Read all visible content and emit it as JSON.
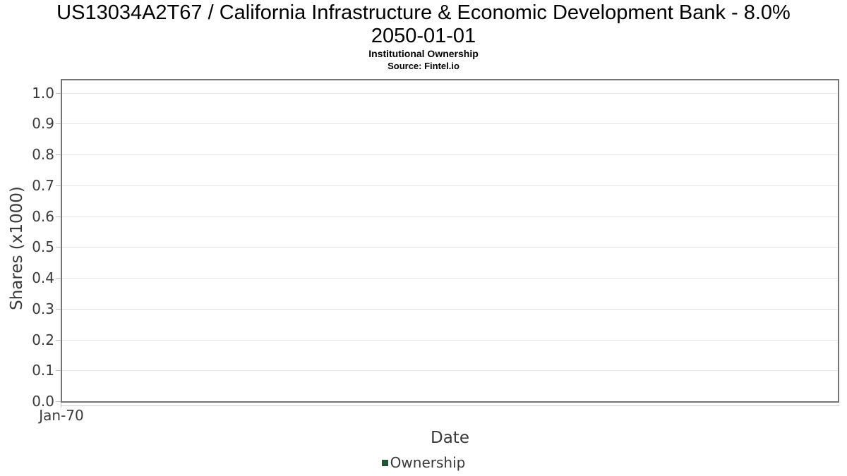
{
  "page": {
    "title_line1": "US13034A2T67 / California Infrastructure & Economic Development Bank - 8.0%",
    "title_line2": "2050-01-01",
    "subtitle": "Institutional Ownership",
    "source": "Source: Fintel.io"
  },
  "axes": {
    "x_label": "Date",
    "y_label": "Shares (x1000)",
    "x_tick": "Jan-70"
  },
  "legend": {
    "label": "Ownership",
    "marker_color": "#1e5631"
  },
  "colors": {
    "frame": "#757575",
    "gridline": "#e5e5e5",
    "tick": "#bdbdbd",
    "text": "#3a3a3a",
    "series_green": "#1e5631"
  },
  "chart_data": {
    "type": "line",
    "title": "US13034A2T67 / California Infrastructure & Economic Development Bank - 8.0% 2050-01-01",
    "subtitle": "Institutional Ownership",
    "source_note": "Source: Fintel.io",
    "xlabel": "Date",
    "ylabel": "Shares (x1000)",
    "x_tick_labels": [
      "Jan-70"
    ],
    "y_ticks": [
      {
        "label": "0.0",
        "value": 0.0
      },
      {
        "label": "0.1",
        "value": 0.1
      },
      {
        "label": "0.2",
        "value": 0.2
      },
      {
        "label": "0.3",
        "value": 0.3
      },
      {
        "label": "0.4",
        "value": 0.4
      },
      {
        "label": "0.5",
        "value": 0.5
      },
      {
        "label": "0.6",
        "value": 0.6
      },
      {
        "label": "0.7",
        "value": 0.7
      },
      {
        "label": "0.8",
        "value": 0.8
      },
      {
        "label": "0.9",
        "value": 0.9
      },
      {
        "label": "1.0",
        "value": 1.0
      }
    ],
    "ylim": [
      0,
      1.04
    ],
    "grid": true,
    "legend_position": "bottom-center",
    "series": [
      {
        "name": "Ownership",
        "color": "#1e5631",
        "x": [],
        "y": []
      }
    ]
  }
}
